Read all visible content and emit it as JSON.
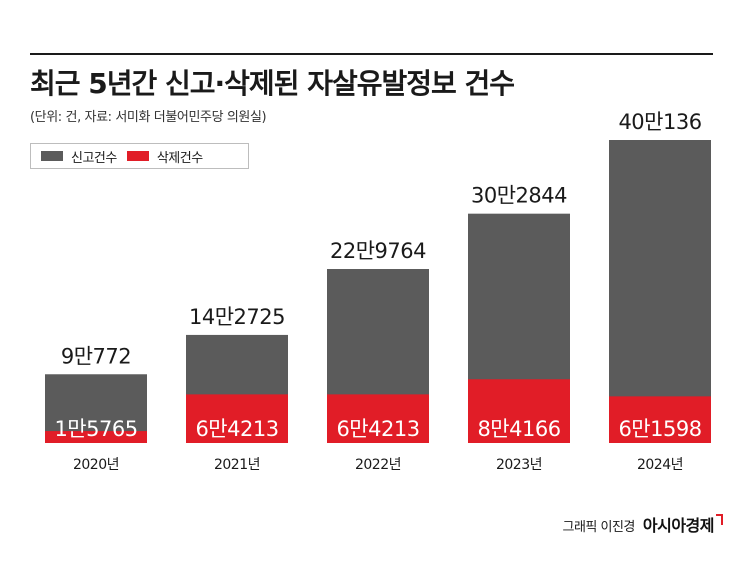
{
  "title": "최근 5년간 신고·삭제된 자살유발정보 건수",
  "subtitle": "(단위: 건, 자료: 서미화 더불어민주당 의원실)",
  "colors": {
    "report": "#5b5b5b",
    "deletion": "#e11d27",
    "text": "#1a1a1a"
  },
  "chart_data": {
    "type": "bar",
    "categories": [
      "2020년",
      "2021년",
      "2022년",
      "2023년",
      "2024년"
    ],
    "series": [
      {
        "name": "신고건수",
        "values": [
          90772,
          142725,
          229764,
          302844,
          400136
        ],
        "labels": [
          "9만772",
          "14만2725",
          "22만9764",
          "30만2844",
          "40만136"
        ]
      },
      {
        "name": "삭제건수",
        "values": [
          15765,
          64213,
          64213,
          84166,
          61598
        ],
        "labels": [
          "1만5765",
          "6만4213",
          "6만4213",
          "8만4166",
          "6만1598"
        ]
      }
    ],
    "ylim": [
      0,
      400136
    ],
    "legend": "top-left",
    "grid": false
  },
  "footer": {
    "credit": "그래픽 이진경",
    "brand": "아시아경제"
  }
}
